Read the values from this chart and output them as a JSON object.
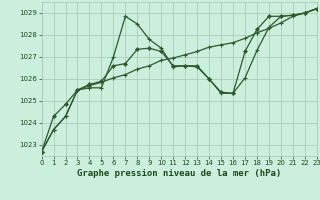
{
  "title": "Graphe pression niveau de la mer (hPa)",
  "bg_color": "#cceedd",
  "grid_color": "#aaccbb",
  "line_color": "#2d5a2d",
  "label_color": "#1a4a1a",
  "xlim": [
    0,
    23
  ],
  "ylim": [
    1022.5,
    1029.5
  ],
  "yticks": [
    1023,
    1024,
    1025,
    1026,
    1027,
    1028,
    1029
  ],
  "xticks": [
    0,
    1,
    2,
    3,
    4,
    5,
    6,
    7,
    8,
    9,
    10,
    11,
    12,
    13,
    14,
    15,
    16,
    17,
    18,
    19,
    20,
    21,
    22,
    23
  ],
  "series1": {
    "points": [
      [
        0,
        1022.7
      ],
      [
        1,
        1023.7
      ],
      [
        2,
        1024.3
      ],
      [
        3,
        1025.5
      ],
      [
        4,
        1025.6
      ],
      [
        5,
        1025.6
      ],
      [
        6,
        1027.0
      ],
      [
        7,
        1028.85
      ],
      [
        8,
        1028.5
      ],
      [
        9,
        1027.8
      ],
      [
        10,
        1027.4
      ],
      [
        11,
        1026.55
      ],
      [
        12,
        1026.6
      ],
      [
        13,
        1026.55
      ],
      [
        14,
        1026.0
      ],
      [
        15,
        1025.35
      ],
      [
        16,
        1025.35
      ],
      [
        17,
        1026.05
      ],
      [
        18,
        1027.3
      ],
      [
        19,
        1028.35
      ],
      [
        20,
        1028.85
      ],
      [
        21,
        1028.9
      ],
      [
        22,
        1029.0
      ],
      [
        23,
        1029.2
      ]
    ]
  },
  "series2": {
    "points": [
      [
        0,
        1022.7
      ],
      [
        1,
        1023.7
      ],
      [
        2,
        1024.3
      ],
      [
        3,
        1025.5
      ],
      [
        4,
        1025.7
      ],
      [
        5,
        1025.85
      ],
      [
        6,
        1026.05
      ],
      [
        7,
        1026.2
      ],
      [
        8,
        1026.45
      ],
      [
        9,
        1026.6
      ],
      [
        10,
        1026.85
      ],
      [
        11,
        1026.95
      ],
      [
        12,
        1027.1
      ],
      [
        13,
        1027.25
      ],
      [
        14,
        1027.45
      ],
      [
        15,
        1027.55
      ],
      [
        16,
        1027.65
      ],
      [
        17,
        1027.85
      ],
      [
        18,
        1028.1
      ],
      [
        19,
        1028.3
      ],
      [
        20,
        1028.55
      ],
      [
        21,
        1028.85
      ],
      [
        22,
        1029.0
      ],
      [
        23,
        1029.2
      ]
    ]
  },
  "series3": {
    "points": [
      [
        0,
        1022.7
      ],
      [
        1,
        1024.3
      ],
      [
        2,
        1024.85
      ],
      [
        3,
        1025.5
      ],
      [
        4,
        1025.75
      ],
      [
        5,
        1025.9
      ],
      [
        6,
        1026.6
      ],
      [
        7,
        1026.7
      ],
      [
        8,
        1027.35
      ],
      [
        9,
        1027.4
      ],
      [
        10,
        1027.25
      ],
      [
        11,
        1026.6
      ],
      [
        12,
        1026.6
      ],
      [
        13,
        1026.6
      ],
      [
        14,
        1026.0
      ],
      [
        15,
        1025.4
      ],
      [
        16,
        1025.35
      ],
      [
        17,
        1027.25
      ],
      [
        18,
        1028.25
      ],
      [
        19,
        1028.85
      ],
      [
        20,
        1028.85
      ],
      [
        21,
        1028.9
      ],
      [
        22,
        1029.0
      ],
      [
        23,
        1029.2
      ]
    ]
  }
}
